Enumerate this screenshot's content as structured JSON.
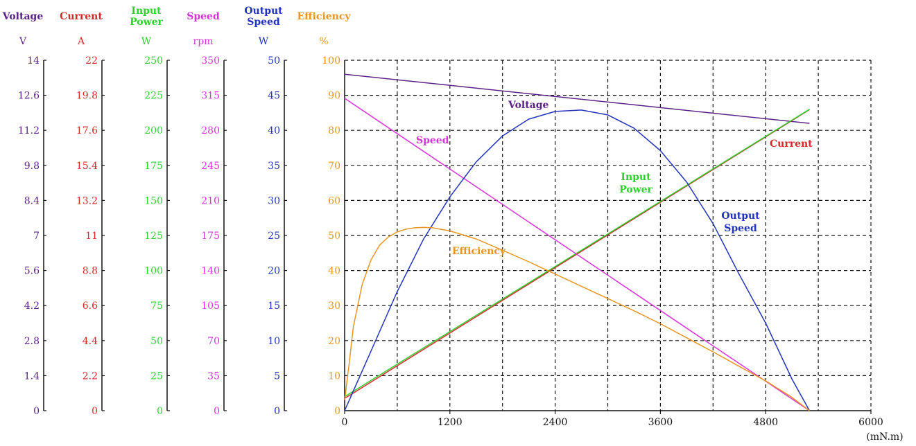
{
  "chart_data": {
    "type": "line",
    "x_axis": {
      "ticks": [
        "0",
        "1200",
        "2400",
        "3600",
        "4800",
        "6000"
      ],
      "unit": "(mN.m)",
      "range": [
        0,
        6000
      ],
      "grid_step": 600
    },
    "axes": [
      {
        "key": "voltage",
        "title_lines": [
          "Voltage"
        ],
        "unit": "V",
        "color": "#5b2288",
        "ticks": [
          "0",
          "1.4",
          "2.8",
          "4.2",
          "5.6",
          "7",
          "8.4",
          "9.8",
          "11.2",
          "12.6",
          "14"
        ],
        "max": 14
      },
      {
        "key": "current",
        "title_lines": [
          "Current"
        ],
        "unit": "A",
        "color": "#d42a2a",
        "ticks": [
          "0",
          "2.2",
          "4.4",
          "6.6",
          "8.8",
          "11",
          "13.2",
          "15.4",
          "17.6",
          "19.8",
          "22"
        ],
        "max": 22
      },
      {
        "key": "input_power",
        "title_lines": [
          "Input",
          "Power"
        ],
        "unit": "W",
        "color": "#2ed12e",
        "ticks": [
          "0",
          "25",
          "50",
          "75",
          "100",
          "125",
          "150",
          "175",
          "200",
          "225",
          "250"
        ],
        "max": 250
      },
      {
        "key": "speed",
        "title_lines": [
          "Speed"
        ],
        "unit": "rpm",
        "color": "#d633d6",
        "ticks": [
          "0",
          "35",
          "70",
          "105",
          "140",
          "175",
          "210",
          "245",
          "280",
          "315",
          "350"
        ],
        "max": 350
      },
      {
        "key": "output_speed",
        "title_lines": [
          "Output",
          "Speed"
        ],
        "unit": "W",
        "color": "#2233bb",
        "ticks": [
          "0",
          "5",
          "10",
          "15",
          "20",
          "25",
          "30",
          "35",
          "40",
          "45",
          "50"
        ],
        "max": 50
      },
      {
        "key": "efficiency",
        "title_lines": [
          "Efficiency"
        ],
        "unit": "%",
        "color": "#e8961e",
        "ticks": [
          "0",
          "10",
          "20",
          "30",
          "40",
          "50",
          "60",
          "70",
          "80",
          "90",
          "100"
        ],
        "max": 100
      }
    ],
    "series": [
      {
        "key": "voltage",
        "name": "Voltage",
        "color": "#5b2288",
        "x": [
          0,
          5300
        ],
        "y": [
          13.44,
          11.48
        ]
      },
      {
        "key": "current",
        "name": "Current",
        "color": "#d42a2a",
        "x": [
          0,
          5300
        ],
        "y": [
          0.77,
          18.9
        ]
      },
      {
        "key": "input_power",
        "name": "Input Power",
        "color": "#2ed12e",
        "x": [
          0,
          5300
        ],
        "y": [
          10,
          215
        ]
      },
      {
        "key": "speed",
        "name": "Speed",
        "color": "#d633d6",
        "x": [
          0,
          5300
        ],
        "y": [
          312,
          0
        ]
      },
      {
        "key": "output_speed",
        "name": "Output Speed",
        "color": "#2233bb",
        "x": [
          0,
          300,
          600,
          900,
          1200,
          1500,
          1800,
          2100,
          2400,
          2700,
          3000,
          3300,
          3600,
          3900,
          4200,
          4500,
          4800,
          5100,
          5300
        ],
        "y": [
          0,
          8.5,
          17,
          24.5,
          30.5,
          35.5,
          39.2,
          41.6,
          42.7,
          42.9,
          42.2,
          40.3,
          37.1,
          32.6,
          26.7,
          19.4,
          12.5,
          4.5,
          0
        ]
      },
      {
        "key": "efficiency",
        "name": "Efficiency",
        "color": "#e8961e",
        "x": [
          0,
          50,
          100,
          200,
          300,
          400,
          500,
          600,
          700,
          800,
          900,
          1000,
          1200,
          1500,
          1800,
          2100,
          2400,
          2700,
          3000,
          3300,
          3600,
          3900,
          4200,
          4500,
          4800,
          5100,
          5300
        ],
        "y": [
          3,
          13,
          24,
          36,
          43,
          47.3,
          49.6,
          51,
          51.8,
          52.2,
          52.3,
          52.2,
          51.3,
          49,
          45.8,
          42.5,
          39,
          35.5,
          32,
          28.5,
          24.8,
          20.8,
          16.8,
          12.6,
          8.5,
          3.8,
          0
        ]
      }
    ],
    "annotations": [
      {
        "series": "voltage",
        "lines": [
          "Voltage"
        ]
      },
      {
        "series": "speed",
        "lines": [
          "Speed"
        ]
      },
      {
        "series": "current",
        "lines": [
          "Current"
        ]
      },
      {
        "series": "input_power",
        "lines": [
          "Input",
          "Power"
        ]
      },
      {
        "series": "output_speed",
        "lines": [
          "Output",
          "Speed"
        ]
      },
      {
        "series": "efficiency",
        "lines": [
          "Efficiency"
        ]
      }
    ],
    "grid": true
  }
}
